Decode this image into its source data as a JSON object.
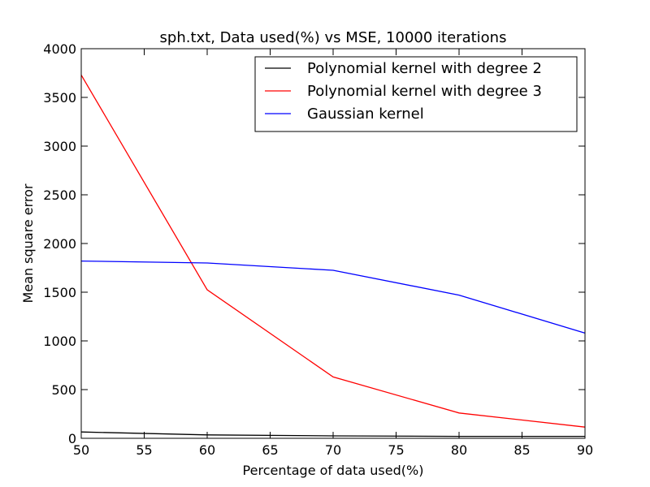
{
  "chart_data": {
    "type": "line",
    "title": "sph.txt, Data used(%) vs MSE, 10000 iterations",
    "xlabel": "Percentage of data used(%)",
    "ylabel": "Mean square error",
    "xlim": [
      50,
      90
    ],
    "ylim": [
      0,
      4000
    ],
    "xticks": [
      50,
      55,
      60,
      65,
      70,
      75,
      80,
      85,
      90
    ],
    "yticks": [
      0,
      500,
      1000,
      1500,
      2000,
      2500,
      3000,
      3500,
      4000
    ],
    "grid": false,
    "legend_position": "top-right",
    "x": [
      50,
      60,
      70,
      80,
      90
    ],
    "series": [
      {
        "name": "Polynomial kernel with degree 2",
        "color": "#000000",
        "values": [
          65,
          35,
          25,
          20,
          20
        ]
      },
      {
        "name": "Polynomial kernel with degree 3",
        "color": "#ff0000",
        "values": [
          3730,
          1525,
          630,
          260,
          115
        ]
      },
      {
        "name": "Gaussian kernel",
        "color": "#0000ff",
        "values": [
          1820,
          1800,
          1725,
          1470,
          1080
        ]
      }
    ]
  }
}
